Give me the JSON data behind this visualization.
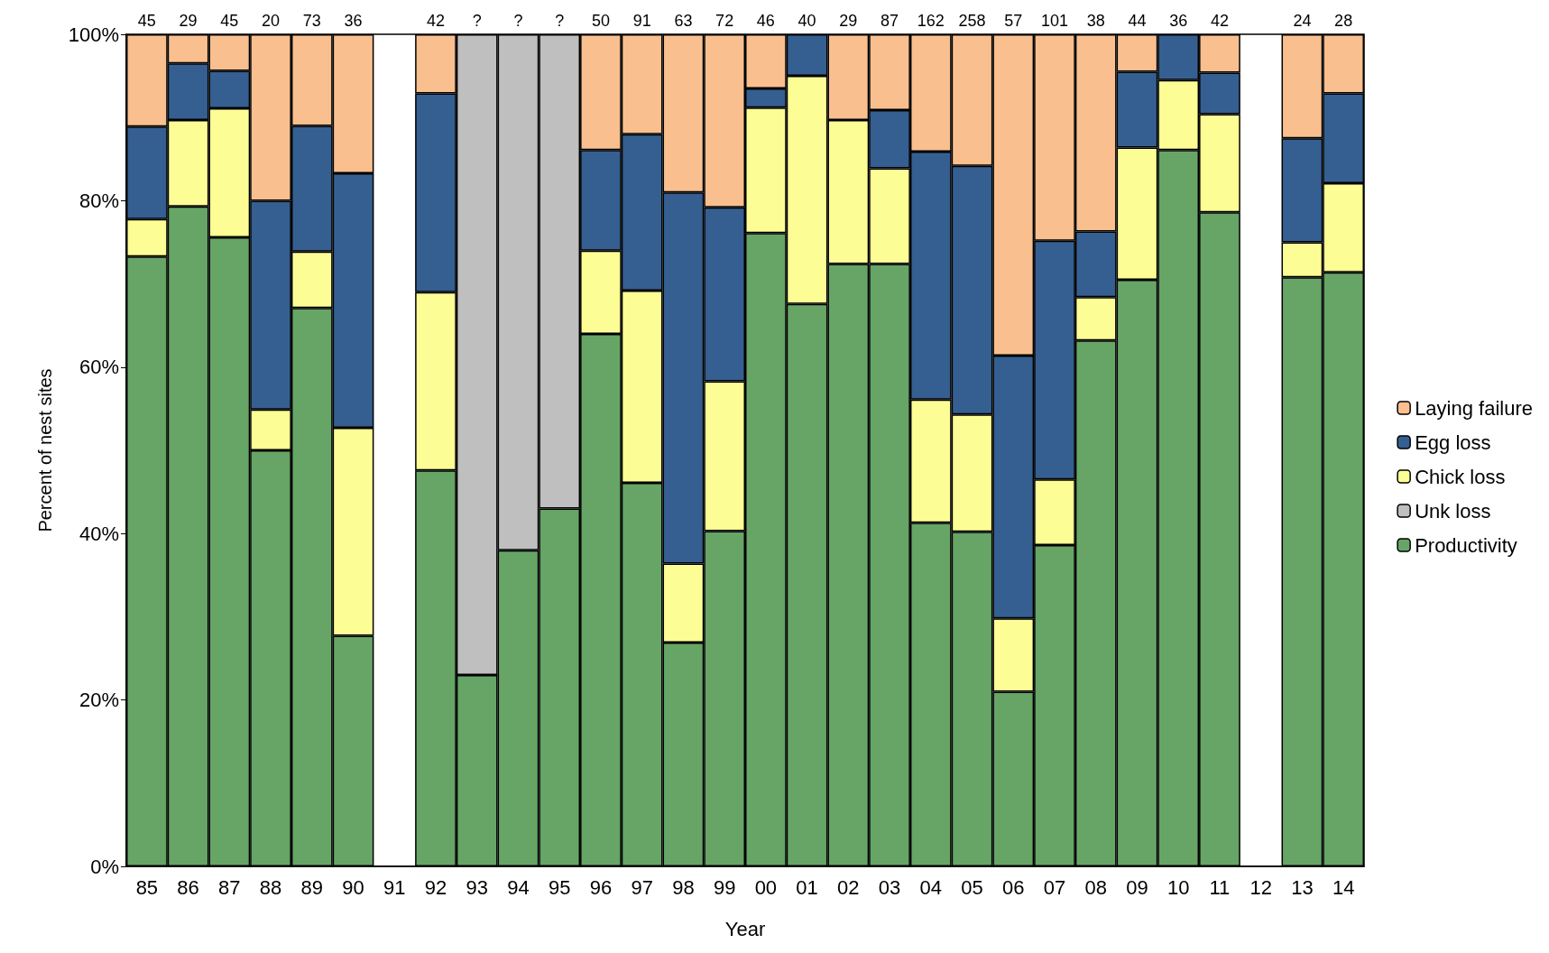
{
  "chart_data": {
    "type": "bar",
    "stacked": true,
    "xlabel": "Year",
    "ylabel": "Percent of nest sites",
    "categories": [
      "85",
      "86",
      "87",
      "88",
      "89",
      "90",
      "91",
      "92",
      "93",
      "94",
      "95",
      "96",
      "97",
      "98",
      "99",
      "00",
      "01",
      "02",
      "03",
      "04",
      "05",
      "06",
      "07",
      "08",
      "09",
      "10",
      "11",
      "12",
      "13",
      "14"
    ],
    "series": [
      {
        "name": "Productivity",
        "color": "#66a566",
        "values": [
          73.3,
          79.3,
          75.6,
          50,
          67.1,
          27.7,
          null,
          47.6,
          23,
          38,
          43,
          64,
          46.1,
          26.9,
          40.3,
          76.1,
          67.6,
          72.4,
          72.4,
          41.3,
          40.2,
          21,
          38.6,
          63.2,
          70.5,
          86.1,
          78.6,
          null,
          70.8,
          71.4
        ]
      },
      {
        "name": "Unk loss",
        "color": "#bfbfbf",
        "values": [
          null,
          null,
          null,
          null,
          null,
          null,
          null,
          null,
          77,
          62,
          57,
          null,
          null,
          null,
          null,
          null,
          null,
          null,
          null,
          null,
          null,
          null,
          null,
          null,
          null,
          null,
          null,
          null,
          null,
          null
        ]
      },
      {
        "name": "Chick loss",
        "color": "#fdfd96",
        "values": [
          4.5,
          10.4,
          15.5,
          4.9,
          6.8,
          25,
          null,
          21.4,
          null,
          null,
          null,
          10,
          23.1,
          9.5,
          18,
          15.1,
          27.4,
          17.3,
          11.5,
          14.8,
          14.1,
          8.8,
          7.9,
          5.2,
          15.9,
          8.4,
          11.8,
          null,
          4.2,
          10.7
        ]
      },
      {
        "name": "Egg loss",
        "color": "#355f91",
        "values": [
          11.1,
          6.8,
          4.5,
          25.1,
          15.1,
          30.6,
          null,
          23.9,
          null,
          null,
          null,
          12.1,
          18.8,
          44.6,
          20.9,
          2.3,
          5,
          null,
          7,
          29.8,
          29.9,
          31.6,
          28.7,
          7.9,
          9.1,
          5.5,
          5,
          null,
          12.5,
          10.8
        ]
      },
      {
        "name": "Laying failure",
        "color": "#f9bf8f",
        "values": [
          11.1,
          3.5,
          4.4,
          20,
          11,
          16.7,
          null,
          7.1,
          null,
          null,
          null,
          13.9,
          12,
          19,
          20.8,
          6.5,
          null,
          10.3,
          9.1,
          14.1,
          15.8,
          38.6,
          24.8,
          23.7,
          4.5,
          null,
          4.6,
          null,
          12.5,
          7.1
        ]
      }
    ],
    "ylim": [
      0,
      100
    ],
    "yticks": [
      {
        "value": 0,
        "label": "0%"
      },
      {
        "value": 20,
        "label": "20%"
      },
      {
        "value": 40,
        "label": "40%"
      },
      {
        "value": 60,
        "label": "60%"
      },
      {
        "value": 80,
        "label": "80%"
      },
      {
        "value": 100,
        "label": "100%"
      }
    ],
    "annotations": [
      {
        "text": "45",
        "x": "85",
        "y": 100
      },
      {
        "text": "29",
        "x": "86",
        "y": 100
      },
      {
        "text": "45",
        "x": "87",
        "y": 100
      },
      {
        "text": "20",
        "x": "88",
        "y": 100
      },
      {
        "text": "73",
        "x": "89",
        "y": 100
      },
      {
        "text": "36",
        "x": "90",
        "y": 100
      },
      {
        "text": "42",
        "x": "92",
        "y": 100
      },
      {
        "text": "?",
        "x": "93",
        "y": 100
      },
      {
        "text": "?",
        "x": "94",
        "y": 100
      },
      {
        "text": "?",
        "x": "95",
        "y": 100
      },
      {
        "text": "50",
        "x": "96",
        "y": 100
      },
      {
        "text": "91",
        "x": "97",
        "y": 100
      },
      {
        "text": "63",
        "x": "98",
        "y": 100
      },
      {
        "text": "72",
        "x": "99",
        "y": 100
      },
      {
        "text": "46",
        "x": "00",
        "y": 100
      },
      {
        "text": "40",
        "x": "01",
        "y": 100
      },
      {
        "text": "29",
        "x": "02",
        "y": 100
      },
      {
        "text": "87",
        "x": "03",
        "y": 100
      },
      {
        "text": "162",
        "x": "04",
        "y": 100
      },
      {
        "text": "258",
        "x": "05",
        "y": 100
      },
      {
        "text": "57",
        "x": "06",
        "y": 100
      },
      {
        "text": "101",
        "x": "07",
        "y": 100
      },
      {
        "text": "38",
        "x": "08",
        "y": 100
      },
      {
        "text": "44",
        "x": "09",
        "y": 100
      },
      {
        "text": "36",
        "x": "10",
        "y": 100
      },
      {
        "text": "42",
        "x": "11",
        "y": 100
      },
      {
        "text": "24",
        "x": "13",
        "y": 100
      },
      {
        "text": "28",
        "x": "14",
        "y": 100
      }
    ],
    "legend": "right",
    "grid": false
  }
}
